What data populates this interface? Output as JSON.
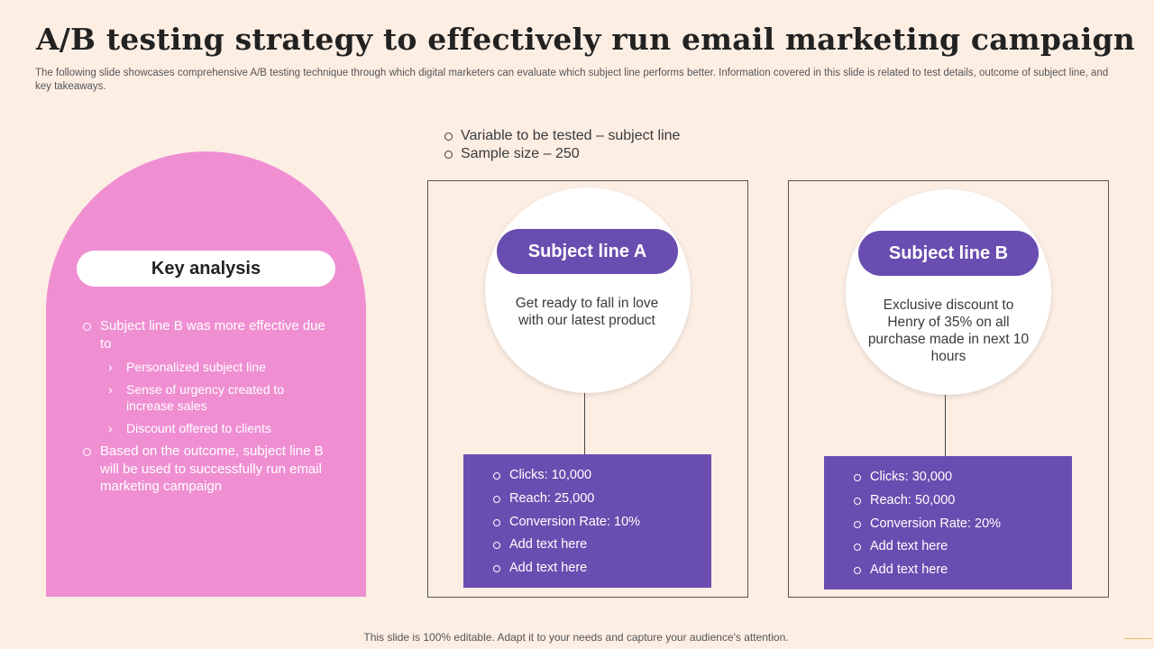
{
  "slide": {
    "title": "A/B testing strategy to effectively run email marketing campaign",
    "subtitle": "The following slide showcases comprehensive A/B testing technique through which digital marketers can evaluate which subject line performs better. Information covered in this slide is related to test details, outcome of subject line, and key takeaways.",
    "footer": "This slide is 100% editable. Adapt it to your needs and capture your audience's attention."
  },
  "key_analysis": {
    "heading": "Key analysis",
    "point1": "Subject line B was more effective due to",
    "reasons": [
      "Personalized subject line",
      "Sense of urgency created to increase sales",
      "Discount offered to clients"
    ],
    "point2": "Based on the outcome, subject line B will be used to successfully run email marketing campaign"
  },
  "test_details": [
    "Variable to be tested – subject line",
    "Sample size – 250"
  ],
  "variant_a": {
    "label": "Subject line A",
    "text": "Get ready to fall in love with our latest product",
    "stats": [
      "Clicks: 10,000",
      "Reach: 25,000",
      "Conversion Rate: 10%",
      "Add text here",
      "Add text here"
    ]
  },
  "variant_b": {
    "label": "Subject line B",
    "text": "Exclusive discount to Henry of 35% on all purchase made in next 10 hours",
    "stats": [
      "Clicks: 30,000",
      "Reach: 50,000",
      "Conversion Rate: 20%",
      "Add text here",
      "Add text here"
    ]
  },
  "colors": {
    "background": "#fdeee4",
    "arch_pink": "#ef8fd2",
    "purple": "#6a4db0"
  },
  "icons": {
    "bullet": "hollow-circle",
    "sub_bullet": "chevron-right"
  }
}
